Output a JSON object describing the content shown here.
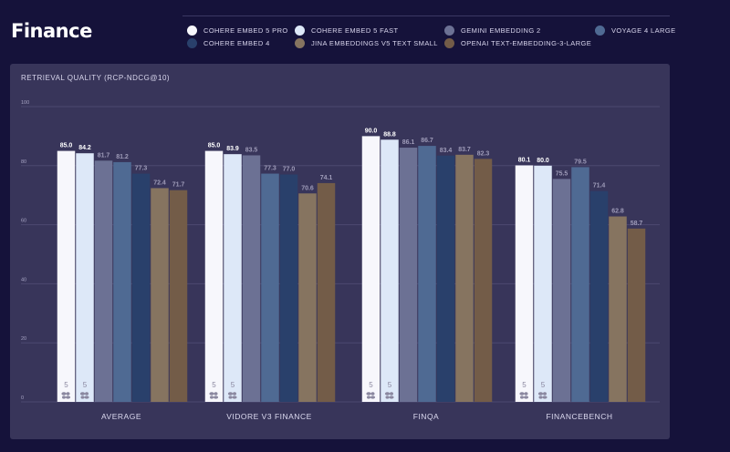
{
  "page": {
    "title": "Finance"
  },
  "colors": {
    "background": "#15123a",
    "panel": "#38355a",
    "grid": "#4c4970"
  },
  "chart_data": {
    "type": "bar",
    "title": "RETRIEVAL QUALITY (RCP-NDCG@10)",
    "xlabel": "",
    "ylabel": "",
    "ylim": [
      0,
      100
    ],
    "yticks": [
      0,
      20,
      40,
      60,
      80,
      100
    ],
    "grid": true,
    "legend_position": "top",
    "categories": [
      "AVERAGE",
      "VIDORE V3 FINANCE",
      "FINQA",
      "FINANCEBENCH"
    ],
    "series": [
      {
        "name": "COHERE EMBED 5 PRO",
        "color": "#f7f7fc",
        "label_color": "#ffffff",
        "values": [
          85.0,
          85.0,
          90.0,
          80.1
        ],
        "badge": "5"
      },
      {
        "name": "COHERE EMBED 5 FAST",
        "color": "#dde8f8",
        "label_color": "#ffffff",
        "values": [
          84.2,
          83.9,
          88.8,
          80.0
        ],
        "badge": "5"
      },
      {
        "name": "GEMINI EMBEDDING 2",
        "color": "#6c7194",
        "label_color": "#9e9bb8",
        "values": [
          81.7,
          83.5,
          86.1,
          75.5
        ]
      },
      {
        "name": "VOYAGE 4 LARGE",
        "color": "#4f6a93",
        "label_color": "#9e9bb8",
        "values": [
          81.2,
          77.3,
          86.7,
          79.5
        ]
      },
      {
        "name": "COHERE EMBED 4",
        "color": "#29406b",
        "label_color": "#9e9bb8",
        "values": [
          77.3,
          77.0,
          83.4,
          71.4
        ]
      },
      {
        "name": "JINA EMBEDDINGS V5 TEXT SMALL",
        "color": "#867460",
        "label_color": "#9e9bb8",
        "values": [
          72.4,
          70.6,
          83.7,
          62.8
        ]
      },
      {
        "name": "OPENAI TEXT-EMBEDDING-3-LARGE",
        "color": "#735c48",
        "label_color": "#9e9bb8",
        "values": [
          71.7,
          74.1,
          82.3,
          58.7
        ]
      }
    ]
  }
}
